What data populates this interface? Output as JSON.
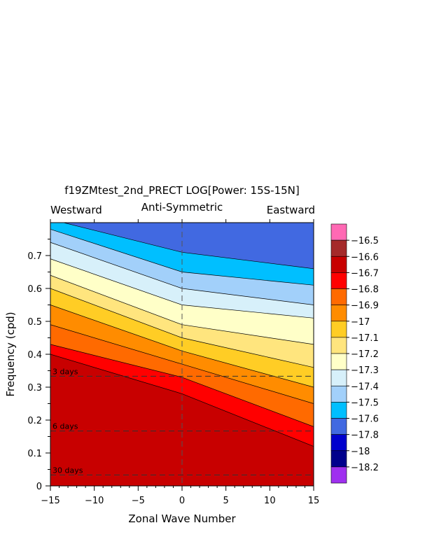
{
  "chart_data": {
    "type": "heatmap",
    "title": "f19ZMtest_2nd_PRECT LOG[Power: 15S-15N]",
    "subtitle": "Anti-Symmetric",
    "left_label": "Westward",
    "right_label": "Eastward",
    "xlabel": "Zonal Wave Number",
    "ylabel": "Frequency (cpd)",
    "xlim": [
      -15,
      15
    ],
    "ylim": [
      0,
      0.8
    ],
    "x_ticks": [
      "-15",
      "-10",
      "-5",
      "0",
      "5",
      "10",
      "15"
    ],
    "y_ticks": [
      "0",
      "0.1",
      "0.2",
      "0.3",
      "0.4",
      "0.5",
      "0.6",
      "0.7"
    ],
    "period_lines": [
      {
        "label": "3 days",
        "frequency": 0.3333
      },
      {
        "label": "6 days",
        "frequency": 0.1667
      },
      {
        "label": "30 days",
        "frequency": 0.0333
      }
    ],
    "levels": [
      -18.2,
      -18,
      -17.8,
      -17.6,
      -17.5,
      -17.4,
      -17.3,
      -17.2,
      -17.1,
      -17,
      -16.9,
      -16.8,
      -16.7,
      -16.6,
      -16.5
    ],
    "level_labels": [
      "-18.2",
      "-18",
      "-17.8",
      "-17.6",
      "-17.5",
      "-17.4",
      "-17.3",
      "-17.2",
      "-17.1",
      "-17",
      "-16.9",
      "-16.8",
      "-16.7",
      "-16.6",
      "-16.5"
    ],
    "colors": [
      "#9f30ef",
      "#00008c",
      "#0000cd",
      "#4169e1",
      "#00bfff",
      "#a2d0fa",
      "#d7f0fa",
      "#ffffc8",
      "#ffe57e",
      "#ffcd25",
      "#ff8c00",
      "#ff6a00",
      "#ff0000",
      "#c80000",
      "#a52a2a",
      "#ff69b4"
    ],
    "contour_boundaries": [
      {
        "level": -16.6,
        "x": [
          -15,
          0,
          15
        ],
        "y": [
          0.4,
          0.28,
          0.12
        ]
      },
      {
        "level": -16.7,
        "x": [
          -15,
          0,
          15
        ],
        "y": [
          0.43,
          0.33,
          0.18
        ]
      },
      {
        "level": -16.8,
        "x": [
          -15,
          0,
          15
        ],
        "y": [
          0.49,
          0.37,
          0.25
        ]
      },
      {
        "level": -16.9,
        "x": [
          -15,
          0,
          15
        ],
        "y": [
          0.55,
          0.41,
          0.3
        ]
      },
      {
        "level": -17,
        "x": [
          -15,
          0,
          15
        ],
        "y": [
          0.6,
          0.45,
          0.36
        ]
      },
      {
        "level": -17.1,
        "x": [
          -15,
          0,
          15
        ],
        "y": [
          0.64,
          0.49,
          0.43
        ]
      },
      {
        "level": -17.2,
        "x": [
          -15,
          0,
          15
        ],
        "y": [
          0.69,
          0.55,
          0.51
        ]
      },
      {
        "level": -17.3,
        "x": [
          -15,
          0,
          15
        ],
        "y": [
          0.74,
          0.6,
          0.55
        ]
      },
      {
        "level": -17.4,
        "x": [
          -15,
          0,
          15
        ],
        "y": [
          0.78,
          0.65,
          0.61
        ]
      },
      {
        "level": -17.5,
        "x": [
          -15,
          0,
          15
        ],
        "y": [
          0.81,
          0.71,
          0.66
        ]
      }
    ],
    "background_level_color": "#4169e1",
    "grid": false,
    "legend": "right colorbar"
  }
}
